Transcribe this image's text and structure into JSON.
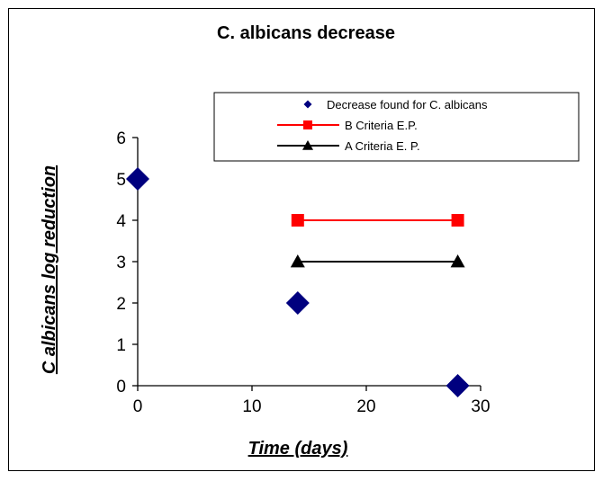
{
  "chart_data": {
    "type": "scatter",
    "title": "C. albicans decrease",
    "xlabel": "Time (days)",
    "ylabel": "C albicans log reduction",
    "xlim": [
      0,
      30
    ],
    "ylim": [
      0,
      6
    ],
    "xticks": [
      "0",
      "10",
      "20",
      "30"
    ],
    "yticks": [
      "0",
      "1",
      "2",
      "3",
      "4",
      "5",
      "6"
    ],
    "grid": false,
    "legend_position": "top-right",
    "series": [
      {
        "name": "Decrease found for C. albicans",
        "marker": "diamond",
        "line": false,
        "color": "#00007f",
        "x": [
          0,
          14,
          28
        ],
        "y": [
          5,
          2,
          0
        ]
      },
      {
        "name": "B Criteria E.P.",
        "marker": "square",
        "line": true,
        "color": "#ff0000",
        "x": [
          14,
          28
        ],
        "y": [
          4,
          4
        ]
      },
      {
        "name": "A Criteria E. P.",
        "marker": "triangle",
        "line": true,
        "color": "#000000",
        "x": [
          14,
          28
        ],
        "y": [
          3,
          3
        ]
      }
    ]
  }
}
